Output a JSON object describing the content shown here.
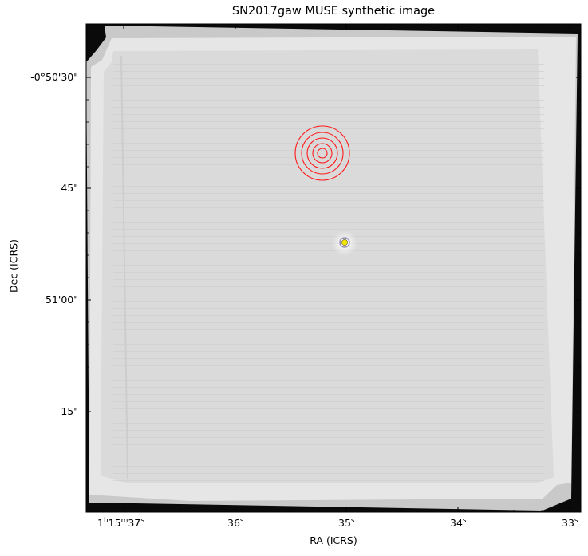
{
  "title": "SN2017gaw MUSE synthetic image",
  "xaxis": {
    "label": "RA (ICRS)",
    "ticks": [
      {
        "h": "1",
        "m": "15",
        "s": "37"
      },
      {
        "s": "36"
      },
      {
        "s": "35"
      },
      {
        "s": "34"
      },
      {
        "s": "33"
      }
    ]
  },
  "yaxis": {
    "label": "Dec (ICRS)",
    "ticks": [
      "-0°50'30\"",
      "45\"",
      "51'00\"",
      "15\""
    ]
  },
  "colors": {
    "field": "#dcdcdc",
    "background": "#0a0a0a",
    "host_rings": "#ff1a1a",
    "sn_marker": "#f5e400"
  }
}
